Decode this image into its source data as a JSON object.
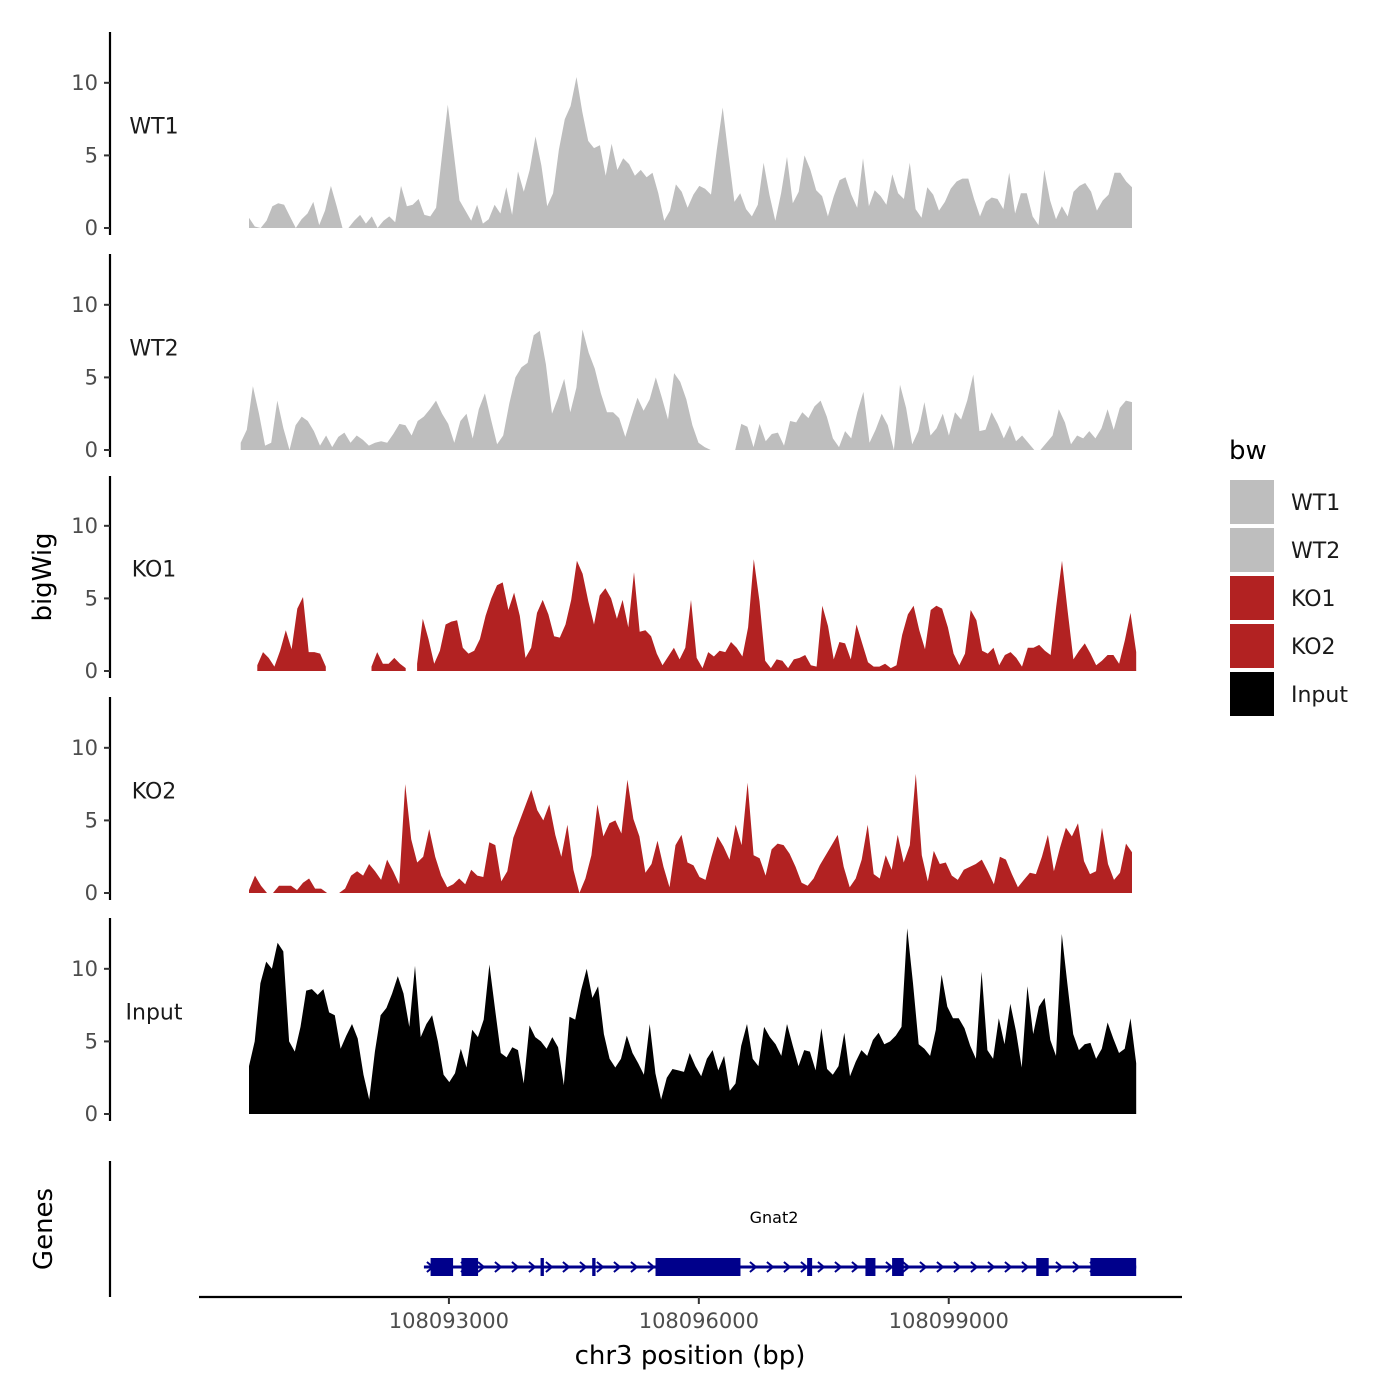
{
  "chart_data": {
    "type": "area",
    "y_axis_title": "bigWig",
    "genes_axis_title": "Genes",
    "x_axis_title": "chr3 position (bp)",
    "x_ticks": [
      108093000,
      108096000,
      108099000
    ],
    "x_tick_labels": [
      "108093000",
      "108096000",
      "108099000"
    ],
    "xlim": [
      108090000,
      108101800
    ],
    "track_ylim": [
      0,
      13.5
    ],
    "y_ticks": [
      0,
      5,
      10
    ],
    "y_tick_labels": [
      "0",
      "5",
      "10"
    ],
    "legend": {
      "title": "bw",
      "entries": [
        {
          "label": "WT1",
          "color": "#BEBEBE"
        },
        {
          "label": "WT2",
          "color": "#BEBEBE"
        },
        {
          "label": "KO1",
          "color": "#B22222"
        },
        {
          "label": "KO2",
          "color": "#B22222"
        },
        {
          "label": "Input",
          "color": "#000000"
        }
      ]
    },
    "series": [
      {
        "name": "WT1",
        "color": "#BEBEBE",
        "x_start": 108090600,
        "x_end": 108101200,
        "values": [
          0.7,
          0.1,
          0,
          0.5,
          1.5,
          1.7,
          1.6,
          0.8,
          0,
          0.6,
          1.0,
          1.8,
          0.2,
          1.2,
          2.9,
          1.5,
          0,
          0,
          0.5,
          0.9,
          0.3,
          0.8,
          0,
          0.5,
          0.8,
          0.4,
          2.9,
          1.5,
          1.6,
          2.0,
          0.9,
          0.8,
          1.4,
          5.0,
          8.5,
          5.2,
          1.9,
          1.2,
          0.5,
          1.6,
          0.3,
          0.6,
          1.6,
          1.0,
          2.8,
          0.9,
          3.9,
          2.5,
          4.0,
          6.3,
          4.3,
          1.5,
          2.4,
          5.4,
          7.5,
          8.4,
          10.4,
          8.0,
          6.0,
          5.5,
          5.7,
          3.6,
          5.8,
          4.0,
          4.8,
          4.4,
          3.6,
          4.0,
          3.5,
          3.8,
          2.4,
          0.5,
          1.2,
          3.0,
          2.5,
          1.4,
          2.3,
          2.9,
          2.7,
          2.3,
          5.4,
          8.3,
          5.0,
          1.8,
          2.4,
          1.3,
          0.8,
          1.6,
          4.5,
          2.3,
          0.5,
          2.4,
          4.9,
          1.7,
          2.5,
          5.0,
          4.0,
          2.6,
          2.2,
          0.8,
          2.2,
          3.3,
          3.5,
          2.3,
          1.4,
          4.8,
          1.5,
          2.6,
          2.2,
          1.6,
          3.7,
          2.4,
          2.0,
          4.5,
          1.3,
          0.7,
          2.8,
          2.3,
          1.2,
          1.8,
          2.7,
          3.2,
          3.4,
          3.4,
          2.0,
          0.8,
          1.8,
          2.1,
          2.0,
          1.3,
          3.8,
          1.0,
          2.4,
          2.4,
          0.8,
          0.2,
          4.0,
          1.9,
          0.6,
          1.5,
          0.8,
          2.5,
          2.9,
          3.1,
          2.5,
          1.2,
          1.9,
          2.3,
          3.8,
          3.8,
          3.2,
          2.8
        ]
      },
      {
        "name": "WT2",
        "color": "#BEBEBE",
        "x_start": 108090500,
        "x_end": 108101200,
        "values": [
          0.5,
          1.4,
          4.4,
          2.5,
          0.3,
          0.5,
          3.4,
          1.5,
          0,
          1.7,
          2.3,
          2.0,
          1.3,
          0.3,
          1.0,
          0.2,
          0.9,
          1.2,
          0.5,
          1.0,
          0.7,
          0.3,
          0.5,
          0.6,
          0.5,
          1.1,
          1.8,
          1.7,
          1.0,
          2.0,
          2.3,
          2.8,
          3.4,
          2.5,
          1.8,
          0.5,
          2.0,
          2.5,
          0.8,
          2.8,
          3.9,
          2.1,
          0.4,
          1.0,
          3.2,
          5.0,
          5.7,
          6.0,
          7.9,
          8.2,
          5.9,
          2.5,
          3.6,
          4.9,
          2.6,
          4.3,
          8.3,
          6.7,
          5.6,
          3.9,
          2.6,
          2.6,
          2.2,
          0.9,
          2.3,
          3.6,
          2.7,
          3.5,
          5.0,
          3.6,
          2.1,
          5.3,
          4.7,
          3.5,
          1.7,
          0.5,
          0.2,
          0,
          0,
          0,
          0,
          0,
          1.8,
          1.6,
          0.2,
          1.8,
          0.6,
          1.1,
          1.2,
          0.3,
          2.0,
          1.9,
          2.6,
          2.2,
          3.0,
          3.4,
          2.3,
          0.8,
          0.2,
          1.3,
          0.8,
          2.6,
          4.0,
          0.5,
          1.4,
          2.5,
          1.7,
          0,
          4.5,
          2.9,
          0.4,
          1.3,
          3.3,
          1.0,
          1.5,
          2.5,
          1.0,
          2.6,
          2.1,
          3.4,
          5.2,
          1.3,
          1.4,
          2.6,
          1.8,
          0.8,
          1.7,
          0.6,
          1.0,
          0.5,
          0,
          0,
          0.5,
          1.0,
          2.8,
          1.9,
          0.4,
          1.0,
          0.8,
          1.3,
          0.8,
          1.5,
          2.8,
          1.4,
          2.9,
          3.4,
          3.3
        ]
      },
      {
        "name": "KO1",
        "color": "#B22222",
        "x_start": 108090700,
        "x_end": 108101250,
        "values": [
          0.4,
          1.3,
          0.9,
          0.3,
          1.4,
          2.8,
          1.5,
          4.3,
          5.1,
          1.3,
          1.3,
          1.2,
          0.3,
          null,
          null,
          null,
          null,
          null,
          null,
          null,
          0.3,
          1.3,
          0.5,
          0.5,
          0.9,
          0.5,
          0.2,
          null,
          0.5,
          3.6,
          2.2,
          0.5,
          1.4,
          3.2,
          3.4,
          3.5,
          1.6,
          1.2,
          1.4,
          2.2,
          3.8,
          5.0,
          5.9,
          6.1,
          4.2,
          5.4,
          3.8,
          0.9,
          1.6,
          4.0,
          4.9,
          3.9,
          2.4,
          2.3,
          3.2,
          4.9,
          7.6,
          6.7,
          4.8,
          3.2,
          5.2,
          5.7,
          5.0,
          3.6,
          4.9,
          3.0,
          6.8,
          2.7,
          2.8,
          2.4,
          1.2,
          0.4,
          1.0,
          1.6,
          0.8,
          1.6,
          4.9,
          0.9,
          0.2,
          1.3,
          1.0,
          1.4,
          1.3,
          2.0,
          1.6,
          1.0,
          3.0,
          7.7,
          4.8,
          0.7,
          0.2,
          0.8,
          0.7,
          0.2,
          0.8,
          0.9,
          1.1,
          0.4,
          0.3,
          4.5,
          3.1,
          0.8,
          2.0,
          1.9,
          0.8,
          3.2,
          1.9,
          0.6,
          0.3,
          0.3,
          0.5,
          0.2,
          0.4,
          2.5,
          3.9,
          4.5,
          2.8,
          1.5,
          4.2,
          4.5,
          4.3,
          3.0,
          1.2,
          0.4,
          1.2,
          4.2,
          3.5,
          1.4,
          1.2,
          1.6,
          0.4,
          1.1,
          1.3,
          0.9,
          0.3,
          1.6,
          1.6,
          1.8,
          1.4,
          1.1,
          4.5,
          7.6,
          4.1,
          0.8,
          1.4,
          1.9,
          1.2,
          0.4,
          0.7,
          1.1,
          1.1,
          0.5,
          2.1,
          4.0,
          1.3
        ]
      },
      {
        "name": "KO2",
        "color": "#B22222",
        "x_start": 108090600,
        "x_end": 108101200,
        "values": [
          0.2,
          1.2,
          0.5,
          0,
          0,
          0.5,
          0.5,
          0.5,
          0.2,
          0.7,
          1.0,
          0.3,
          0.3,
          0,
          0,
          0,
          0.3,
          1.2,
          1.5,
          1.2,
          2.0,
          1.5,
          0.9,
          2.3,
          1.5,
          0.6,
          7.5,
          3.7,
          2.1,
          2.5,
          4.4,
          2.5,
          1.2,
          0.4,
          0.6,
          1.0,
          0.6,
          1.6,
          1.2,
          1.1,
          3.5,
          3.3,
          0.8,
          1.5,
          3.8,
          4.9,
          6.0,
          7.1,
          5.7,
          5.0,
          6.1,
          4.0,
          2.5,
          4.7,
          1.6,
          0,
          1.0,
          2.6,
          6.1,
          3.9,
          4.8,
          5.0,
          4.1,
          7.8,
          5.1,
          3.9,
          1.4,
          2.0,
          3.6,
          1.8,
          0.4,
          3.3,
          4.0,
          2.1,
          1.9,
          1.1,
          0.9,
          2.5,
          3.9,
          3.2,
          2.3,
          4.7,
          3.3,
          7.6,
          2.6,
          2.4,
          1.2,
          3.0,
          3.4,
          3.3,
          2.7,
          1.8,
          0.7,
          0.5,
          1.0,
          1.9,
          2.6,
          3.3,
          4.0,
          1.8,
          0.4,
          1.0,
          2.3,
          4.7,
          1.3,
          1.0,
          2.6,
          1.6,
          4.0,
          2.1,
          3.3,
          8.2,
          2.6,
          0.8,
          2.9,
          2.0,
          2.1,
          1.2,
          0.9,
          1.6,
          1.8,
          2.0,
          2.3,
          1.5,
          0.6,
          2.5,
          2.3,
          1.3,
          0.4,
          0.9,
          1.4,
          1.3,
          2.5,
          4.0,
          1.5,
          3.1,
          4.5,
          3.9,
          4.8,
          2.2,
          1.3,
          1.5,
          4.5,
          2.0,
          0.9,
          1.4,
          3.4,
          2.8
        ]
      },
      {
        "name": "Input",
        "color": "#000000",
        "x_start": 108090600,
        "x_end": 108101250,
        "values": [
          3.3,
          5.0,
          9.0,
          10.5,
          10.0,
          11.8,
          11.2,
          5.0,
          4.3,
          6.0,
          8.5,
          8.6,
          8.2,
          8.6,
          7.0,
          6.8,
          4.5,
          5.4,
          6.2,
          5.2,
          2.7,
          1.0,
          4.3,
          6.8,
          7.3,
          8.3,
          9.5,
          8.3,
          6.0,
          10.2,
          5.3,
          6.2,
          6.8,
          5.0,
          2.7,
          2.2,
          2.8,
          4.5,
          3.2,
          5.8,
          5.3,
          6.5,
          10.3,
          7.2,
          4.2,
          3.9,
          4.6,
          4.4,
          2.1,
          6.1,
          5.3,
          5.0,
          4.5,
          5.3,
          4.6,
          2.0,
          6.7,
          6.5,
          8.5,
          10.0,
          8.0,
          8.8,
          5.5,
          3.8,
          3.2,
          3.8,
          5.4,
          4.2,
          3.5,
          2.7,
          6.2,
          2.8,
          1.0,
          2.5,
          3.1,
          3.0,
          2.9,
          4.2,
          3.3,
          2.6,
          3.8,
          4.4,
          3.0,
          4.0,
          1.6,
          2.1,
          4.7,
          6.2,
          3.8,
          3.3,
          6.0,
          5.3,
          4.8,
          4.0,
          6.2,
          4.7,
          3.3,
          4.4,
          4.3,
          3.0,
          5.9,
          3.1,
          2.7,
          3.3,
          5.6,
          2.6,
          3.6,
          4.4,
          4.0,
          5.1,
          5.6,
          4.8,
          5.0,
          5.4,
          6.0,
          12.8,
          9.0,
          4.8,
          4.5,
          4.0,
          5.8,
          9.6,
          7.4,
          6.6,
          6.6,
          5.9,
          4.7,
          3.8,
          9.8,
          4.4,
          3.8,
          6.6,
          4.8,
          7.6,
          5.7,
          3.2,
          8.8,
          5.5,
          7.4,
          8.0,
          5.1,
          4.0,
          12.4,
          8.9,
          5.5,
          4.4,
          4.8,
          4.9,
          3.8,
          4.5,
          6.3,
          5.2,
          4.2,
          4.5,
          6.6,
          3.5
        ]
      }
    ],
    "gene": {
      "name": "Gnat2",
      "strand": "+",
      "start": 108092700,
      "end": 108101250,
      "color": "#00008B",
      "exons": [
        [
          108092780,
          108093050
        ],
        [
          108093150,
          108093350
        ],
        [
          108094100,
          108094140
        ],
        [
          108094720,
          108094760
        ],
        [
          108095480,
          108096500
        ],
        [
          108097300,
          108097360
        ],
        [
          108098000,
          108098120
        ],
        [
          108098320,
          108098460
        ],
        [
          108100050,
          108100200
        ],
        [
          108100700,
          108101250
        ]
      ]
    }
  }
}
